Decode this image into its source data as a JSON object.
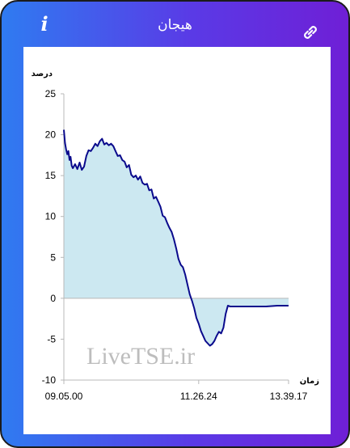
{
  "header": {
    "title": "هیجان",
    "info_label": "i",
    "info_icon": "info-icon",
    "link_icon": "link-icon"
  },
  "watermark": "LiveTSE.ir",
  "colors": {
    "line": "#0a0a8c",
    "fill": "#cce8f1",
    "axis": "#b8b8b8",
    "gradient_start": "#2f7bf1",
    "gradient_end": "#6f1fd6"
  },
  "chart_data": {
    "type": "area",
    "ylabel": "درصد",
    "xlabel": "زمان",
    "ylim": [
      -10,
      25
    ],
    "yticks": [
      "25",
      "20",
      "15",
      "10",
      "5",
      "0",
      "-5",
      "-10"
    ],
    "xtick_labels": [
      "09.05.00",
      "11.26.24",
      "13.39.17"
    ],
    "xtick_positions": [
      0,
      0.6,
      1
    ],
    "series": [
      {
        "x": [
          0,
          0.005,
          0.01,
          0.015,
          0.02,
          0.025,
          0.03,
          0.035,
          0.04,
          0.05,
          0.06,
          0.07,
          0.08,
          0.09,
          0.1,
          0.11,
          0.12,
          0.13,
          0.14,
          0.15,
          0.16,
          0.17,
          0.18,
          0.19,
          0.2,
          0.21,
          0.22,
          0.23,
          0.24,
          0.25,
          0.26,
          0.27,
          0.28,
          0.29,
          0.3,
          0.31,
          0.32,
          0.33,
          0.34,
          0.35,
          0.36,
          0.37,
          0.38,
          0.39,
          0.4,
          0.41,
          0.42,
          0.43,
          0.44,
          0.45,
          0.46,
          0.47,
          0.48,
          0.49,
          0.5,
          0.51,
          0.52,
          0.53,
          0.54,
          0.55,
          0.56,
          0.57,
          0.58,
          0.59,
          0.6,
          0.61,
          0.62,
          0.63,
          0.64,
          0.65,
          0.66,
          0.67,
          0.68,
          0.69,
          0.7,
          0.71,
          0.72,
          0.73,
          0.74,
          0.75,
          0.76,
          0.77,
          0.78,
          0.79,
          0.8,
          0.82,
          0.86,
          0.9,
          0.95,
          1.0
        ],
        "values": [
          20.6,
          19.0,
          18.2,
          17.6,
          18.0,
          16.9,
          17.3,
          16.2,
          15.9,
          16.4,
          15.8,
          16.6,
          15.7,
          16.1,
          17.4,
          18.1,
          18.0,
          18.4,
          18.9,
          18.6,
          19.2,
          19.5,
          18.8,
          19.0,
          18.7,
          18.9,
          18.6,
          18.0,
          17.4,
          17.5,
          16.9,
          16.7,
          16.0,
          16.3,
          15.1,
          14.8,
          15.0,
          14.5,
          14.9,
          14.1,
          13.9,
          14.0,
          13.2,
          13.3,
          12.2,
          12.4,
          11.8,
          11.2,
          10.1,
          9.9,
          9.2,
          8.6,
          8.1,
          7.2,
          6.1,
          4.8,
          4.1,
          3.8,
          2.9,
          1.7,
          0.5,
          -0.3,
          -1.2,
          -2.4,
          -3.1,
          -4.0,
          -4.6,
          -5.2,
          -5.5,
          -5.8,
          -5.6,
          -5.2,
          -4.6,
          -4.1,
          -4.3,
          -3.6,
          -1.9,
          -0.9,
          -1.0,
          -1.0,
          -1.0,
          -1.0,
          -1.0,
          -1.0,
          -1.0,
          -1.0,
          -1.0,
          -1.0,
          -0.9,
          -0.9
        ]
      }
    ],
    "grid": false
  }
}
